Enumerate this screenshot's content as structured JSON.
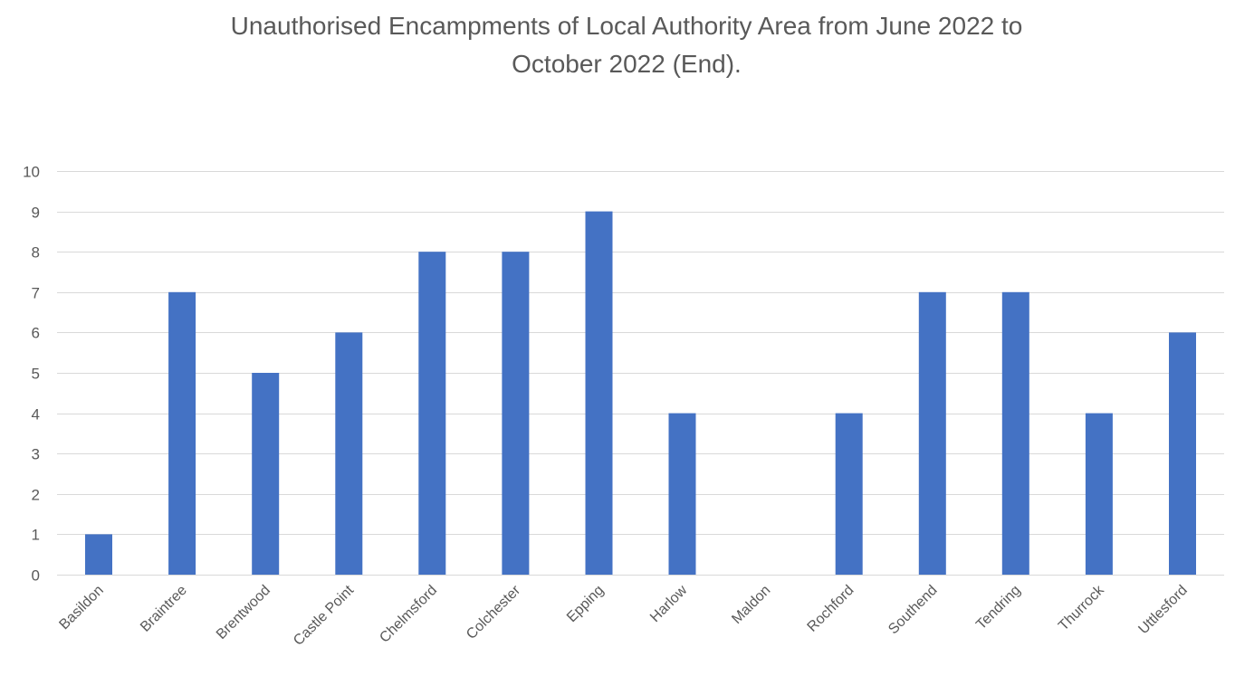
{
  "chart_data": {
    "type": "bar",
    "title_lines": [
      "Unauthorised Encampments of Local Authority Area from June 2022 to",
      "October 2022 (End)."
    ],
    "categories": [
      "Basildon",
      "Braintree",
      "Brentwood",
      "Castle Point",
      "Chelmsford",
      "Colchester",
      "Epping",
      "Harlow",
      "Maldon",
      "Rochford",
      "Southend",
      "Tendring",
      "Thurrock",
      "Uttlesford"
    ],
    "values": [
      1,
      7,
      5,
      6,
      8,
      8,
      9,
      4,
      0,
      4,
      7,
      7,
      4,
      6
    ],
    "yticks": [
      0,
      1,
      2,
      3,
      4,
      5,
      6,
      7,
      8,
      9,
      10
    ],
    "ylim": [
      0,
      10
    ],
    "grid": true,
    "legend": "none",
    "bar_color": "#4472C4",
    "grid_color": "#D9D9D9",
    "text_color": "#595959"
  }
}
